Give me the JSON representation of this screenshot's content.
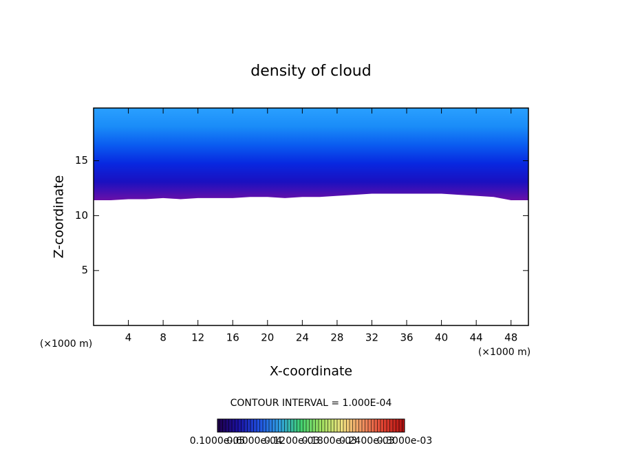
{
  "chart_data": {
    "type": "contour",
    "title": "density of cloud",
    "xlabel": "X-coordinate",
    "ylabel": "Z-coordinate",
    "x_unit_label": "(×1000 m)",
    "contour_interval": "CONTOUR INTERVAL = 1.000E-04",
    "xlim": [
      0,
      50
    ],
    "ylim": [
      0,
      19.8
    ],
    "xticks": [
      4,
      8,
      12,
      16,
      20,
      24,
      28,
      32,
      36,
      40,
      44,
      48
    ],
    "yticks": [
      5,
      10,
      15
    ],
    "x": [
      0,
      2,
      4,
      6,
      8,
      10,
      12,
      14,
      16,
      18,
      20,
      22,
      24,
      26,
      28,
      30,
      32,
      34,
      36,
      38,
      40,
      42,
      44,
      46,
      48,
      50
    ],
    "cloud_base": [
      11.4,
      11.4,
      11.5,
      11.5,
      11.6,
      11.5,
      11.6,
      11.6,
      11.6,
      11.7,
      11.7,
      11.6,
      11.7,
      11.7,
      11.8,
      11.9,
      12.0,
      12.0,
      12.0,
      12.0,
      12.0,
      11.9,
      11.8,
      11.7,
      11.4,
      11.4
    ],
    "fill_colors": [
      "#6a10a8",
      "#1a10c0",
      "#0828e0",
      "#0a5cf0",
      "#1a8cf8",
      "#2aa0ff"
    ],
    "colorbar": {
      "lim": [
        1e-06,
        0.0003
      ],
      "ticks": [
        {
          "value": 1e-06,
          "label": "0.1000e-05"
        },
        {
          "value": 6e-05,
          "label": "0.6000e-04"
        },
        {
          "value": 0.00012,
          "label": "0.1200e-03"
        },
        {
          "value": 0.00018,
          "label": "0.1800e-03"
        },
        {
          "value": 0.00024,
          "label": "0.2400e-03"
        },
        {
          "value": 0.0003,
          "label": "0.3000e-03"
        }
      ],
      "colors": [
        "#20004a",
        "#1a10a0",
        "#2050e0",
        "#30a0e0",
        "#40d070",
        "#a0e060",
        "#f0e080",
        "#f09060",
        "#e04030",
        "#b01010"
      ]
    }
  }
}
